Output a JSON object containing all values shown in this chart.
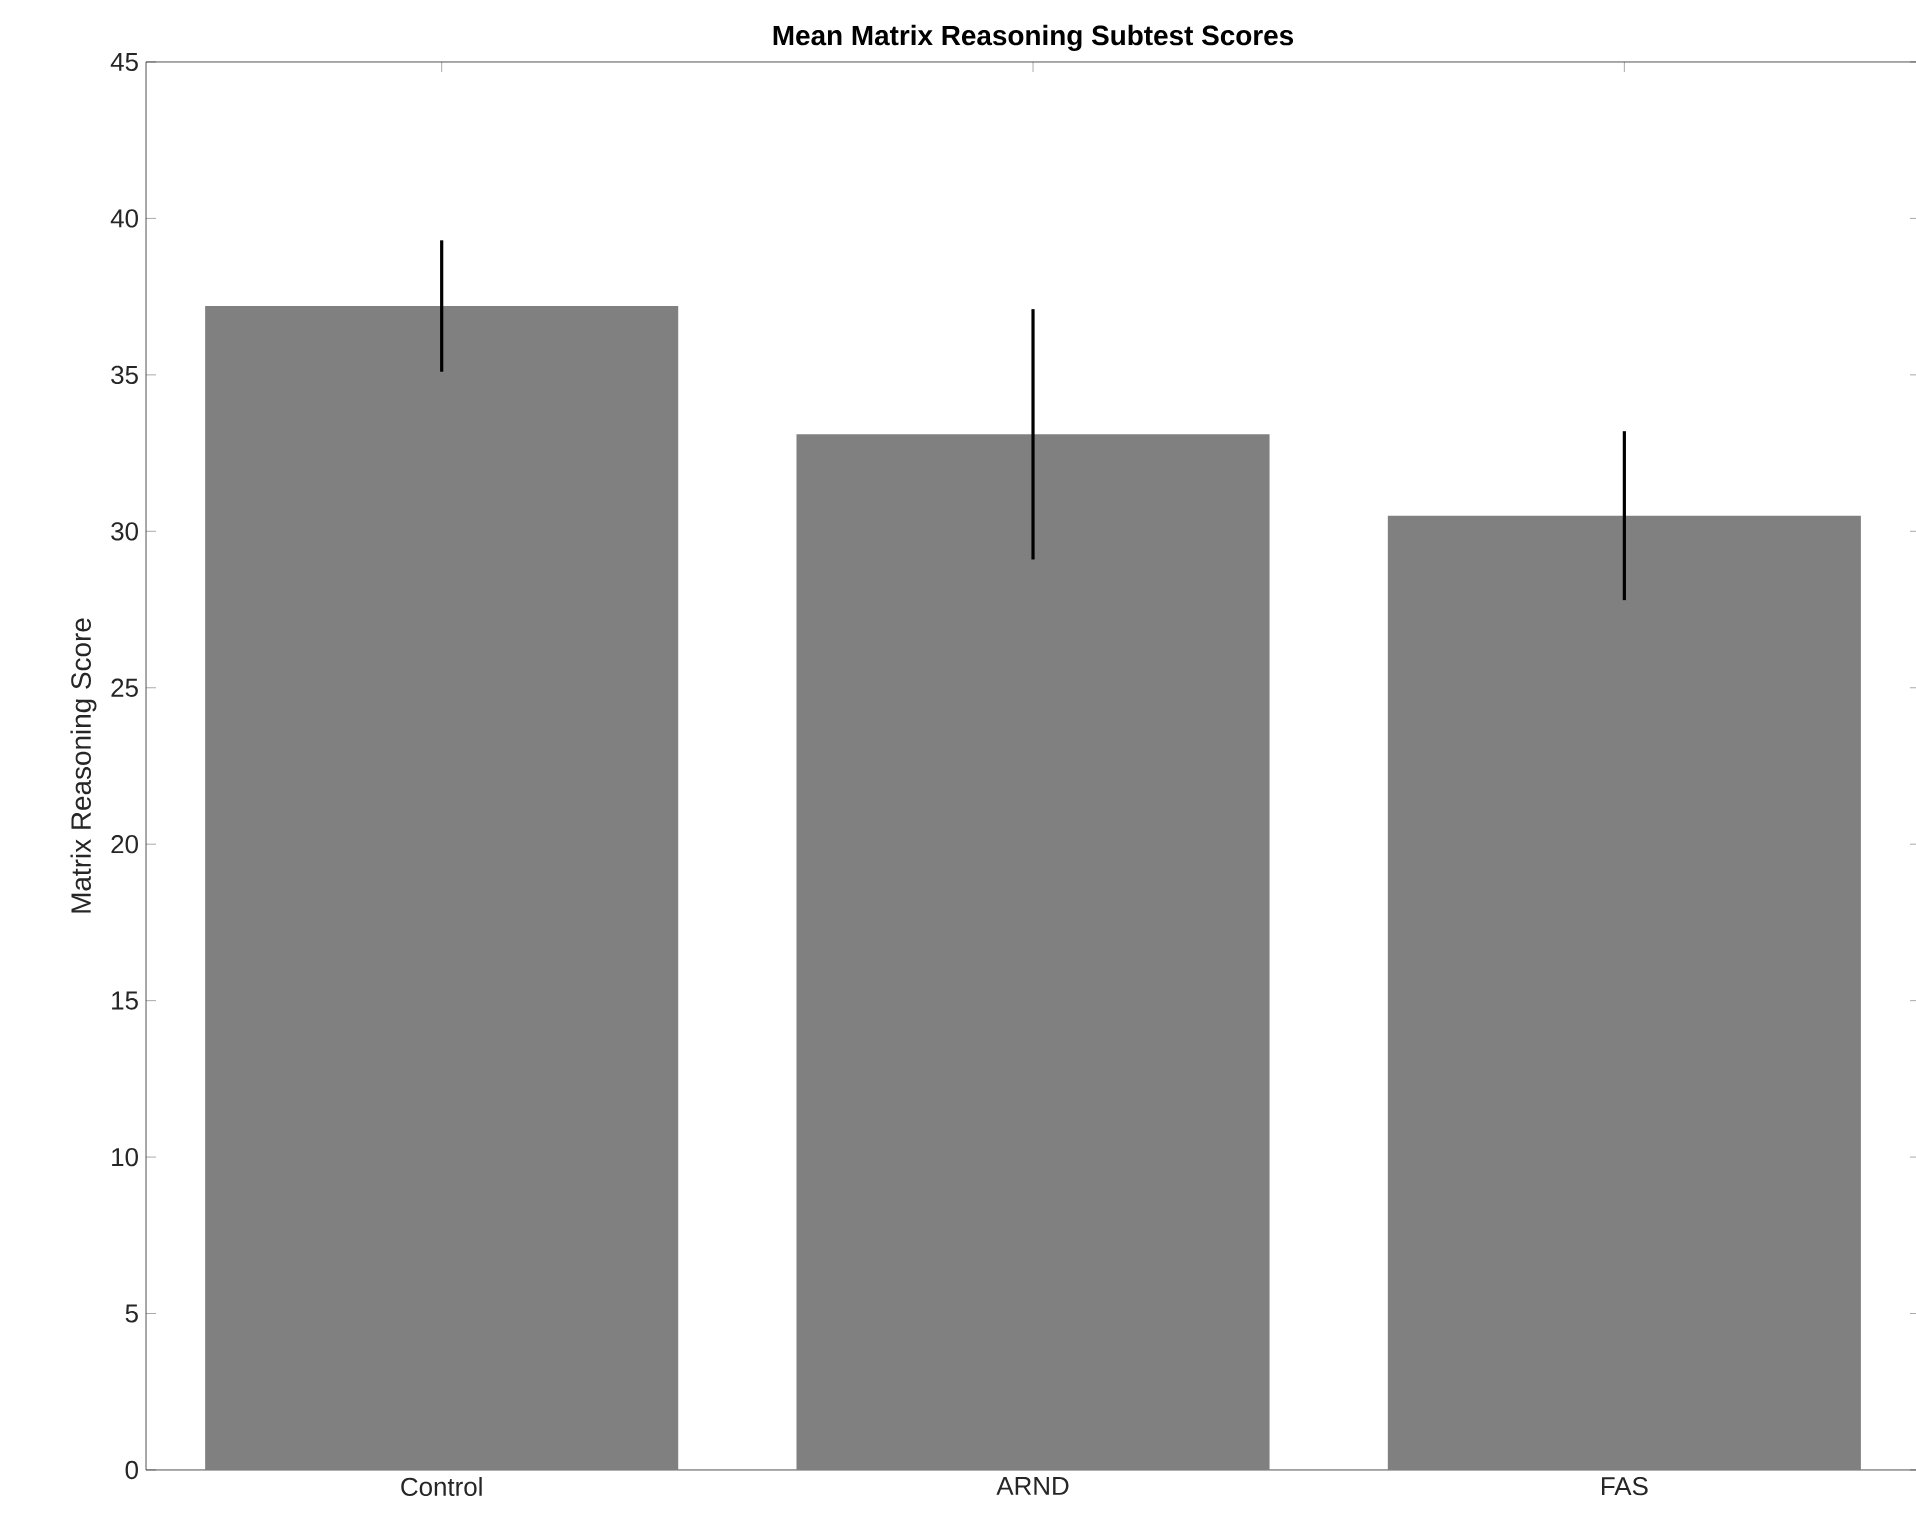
{
  "chart_data": {
    "type": "bar",
    "title": "Mean Matrix Reasoning Subtest Scores",
    "ylabel": "Matrix Reasoning Score",
    "categories": [
      "Control",
      "ARND",
      "FAS"
    ],
    "values": [
      37.2,
      33.1,
      30.5
    ],
    "errors": [
      2.1,
      4.0,
      2.7
    ],
    "color": "#808080",
    "ylim": [
      0,
      45
    ],
    "yticks": [
      0,
      5,
      10,
      15,
      20,
      25,
      30,
      35,
      40,
      45
    ],
    "grid": false
  }
}
